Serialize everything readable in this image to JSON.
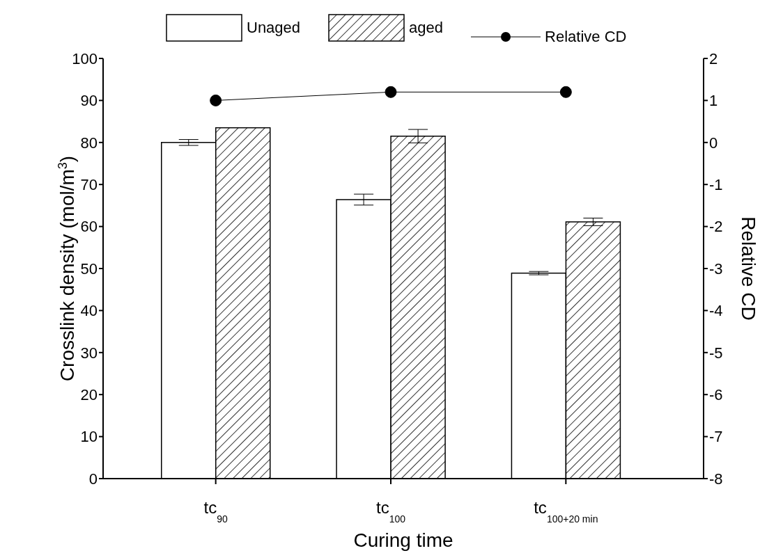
{
  "chart_data": {
    "type": "bar",
    "xlabel": "Curing time",
    "ylabel": "Crosslink density (mol/m$^{3}$)",
    "y2label": "Relative CD",
    "categories": [
      "tc$_{90}$",
      "tc$_{100}$",
      "tc$_{100+20 min}$"
    ],
    "series": [
      {
        "name": "Unaged",
        "color": "#ffffff",
        "values": [
          80.0,
          66.4,
          48.9
        ],
        "errors": [
          0.7,
          1.3,
          0.4
        ]
      },
      {
        "name": "aged",
        "color": "#000000",
        "values": [
          83.5,
          81.5,
          61.1
        ],
        "errors": [
          null,
          1.6,
          0.9
        ]
      },
      {
        "name": "Relative CD",
        "type": "line",
        "axis": "y2",
        "color": "#000000",
        "values": [
          1.0,
          1.2,
          1.2
        ]
      }
    ],
    "ylim": [
      0,
      100
    ],
    "yticks": [
      0,
      10,
      20,
      30,
      40,
      50,
      60,
      70,
      80,
      90,
      100
    ],
    "y2lim": [
      -8,
      2
    ],
    "y2ticks": [
      -8,
      -7,
      -6,
      -5,
      -4,
      -3,
      -2,
      -1,
      0,
      1,
      2
    ],
    "legend": "top",
    "marker": "circle"
  }
}
